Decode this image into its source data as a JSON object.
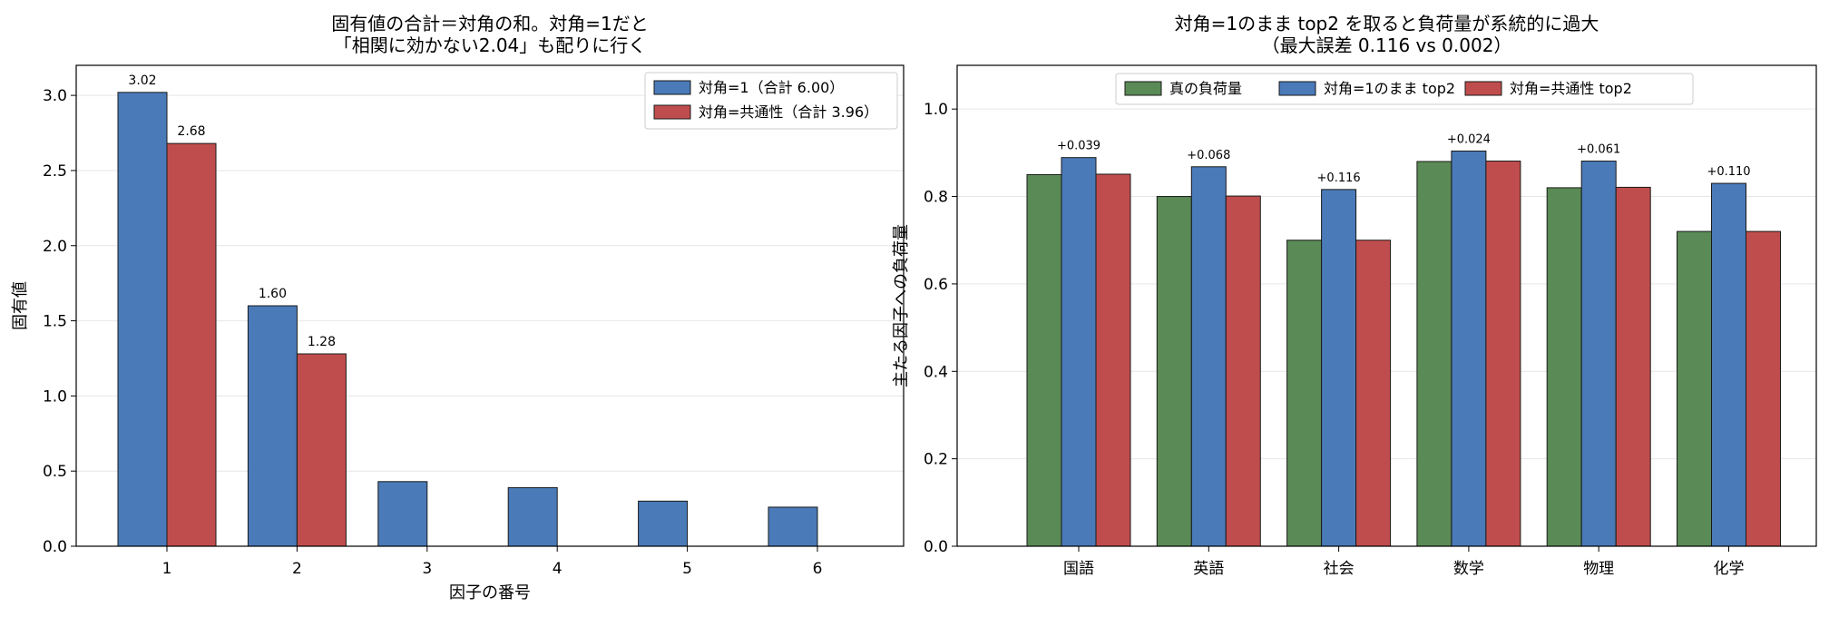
{
  "chart_data": [
    {
      "type": "bar",
      "title_lines": [
        "固有値の合計＝対角の和。対角=1だと",
        "「相関に効かない2.04」も配りに行く"
      ],
      "xlabel": "因子の番号",
      "ylabel": "固有値",
      "categories": [
        "1",
        "2",
        "3",
        "4",
        "5",
        "6"
      ],
      "ylim": [
        0,
        3.2
      ],
      "yticks": [
        "0.0",
        "0.5",
        "1.0",
        "1.5",
        "2.0",
        "2.5",
        "3.0"
      ],
      "grid": "horizontal",
      "legend_position": "top-right",
      "series": [
        {
          "name": "対角=1（合計 6.00）",
          "color": "#4a7ab8",
          "values": [
            3.02,
            1.6,
            0.43,
            0.39,
            0.3,
            0.26
          ]
        },
        {
          "name": "対角=共通性（合計 3.96）",
          "color": "#c04d4d",
          "values": [
            2.68,
            1.28,
            null,
            null,
            null,
            null
          ]
        }
      ],
      "annotations": [
        {
          "series": 0,
          "index": 0,
          "text": "3.02"
        },
        {
          "series": 1,
          "index": 0,
          "text": "2.68"
        },
        {
          "series": 0,
          "index": 1,
          "text": "1.60"
        },
        {
          "series": 1,
          "index": 1,
          "text": "1.28"
        }
      ]
    },
    {
      "type": "bar",
      "title_lines": [
        "対角=1のまま top2 を取ると負荷量が系統的に過大",
        "（最大誤差 0.116 vs 0.002）"
      ],
      "xlabel": "",
      "ylabel": "主たる因子への負荷量",
      "categories": [
        "国語",
        "英語",
        "社会",
        "数学",
        "物理",
        "化学"
      ],
      "ylim": [
        0,
        1.1
      ],
      "yticks": [
        "0.0",
        "0.2",
        "0.4",
        "0.6",
        "0.8",
        "1.0"
      ],
      "grid": "horizontal",
      "legend_position": "top-center",
      "series": [
        {
          "name": "真の負荷量",
          "color": "#5a8a55",
          "values": [
            0.85,
            0.8,
            0.7,
            0.88,
            0.82,
            0.72
          ]
        },
        {
          "name": "対角=1のまま top2",
          "color": "#4a7ab8",
          "values": [
            0.889,
            0.868,
            0.816,
            0.904,
            0.881,
            0.83
          ]
        },
        {
          "name": "対角=共通性 top2",
          "color": "#c04d4d",
          "values": [
            0.851,
            0.801,
            0.7,
            0.881,
            0.821,
            0.72
          ]
        }
      ],
      "annotations": [
        {
          "series": 1,
          "index": 0,
          "text": "+0.039"
        },
        {
          "series": 1,
          "index": 1,
          "text": "+0.068"
        },
        {
          "series": 1,
          "index": 2,
          "text": "+0.116"
        },
        {
          "series": 1,
          "index": 3,
          "text": "+0.024"
        },
        {
          "series": 1,
          "index": 4,
          "text": "+0.061"
        },
        {
          "series": 1,
          "index": 5,
          "text": "+0.110"
        }
      ]
    }
  ]
}
